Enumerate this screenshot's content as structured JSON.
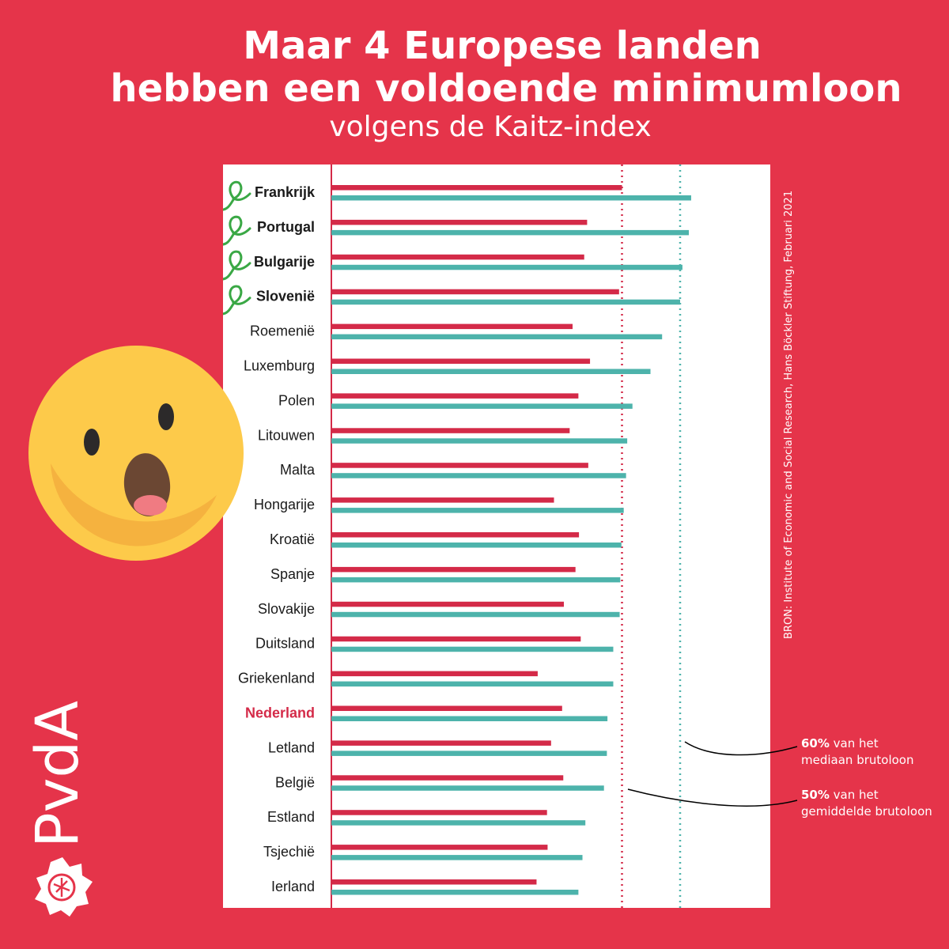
{
  "title_line1": "Maar 4 Europese landen",
  "title_line2": "hebben een voldoende minimumloon",
  "subtitle": "volgens de Kaitz-index",
  "source": "BRON: Institute of Economic and Social Research, Hans Böckler Stiftung, Februari 2021",
  "annotation_60": {
    "strong": "60%",
    "rest": " van het",
    "line2": "mediaan brutoloon"
  },
  "annotation_50": {
    "strong": "50%",
    "rest": " van het",
    "line2": "gemiddelde brutoloon"
  },
  "logo_text": "PvdA",
  "colors": {
    "background": "#e5344a",
    "bar_average": "#d42a48",
    "bar_median": "#4db3ab",
    "highlight_label": "#d42a48",
    "check_mark": "#3aa845"
  },
  "icons": [
    "surprised-face-emoji-icon",
    "rose-logo-icon",
    "check-mark-icon"
  ],
  "chart_data": {
    "type": "bar",
    "orientation": "horizontal",
    "categories": [
      "Frankrijk",
      "Portugal",
      "Bulgarije",
      "Slovenië",
      "Roemenië",
      "Luxemburg",
      "Polen",
      "Litouwen",
      "Malta",
      "Hongarije",
      "Kroatië",
      "Spanje",
      "Slovakije",
      "Duitsland",
      "Griekenland",
      "Nederland",
      "Letland",
      "België",
      "Estland",
      "Tsjechië",
      "Ierland"
    ],
    "highlighted": [
      "Frankrijk",
      "Portugal",
      "Bulgarije",
      "Slovenië"
    ],
    "checked": [
      "Frankrijk",
      "Portugal",
      "Bulgarije",
      "Slovenië"
    ],
    "emphasized_country": "Nederland",
    "series": [
      {
        "key": "average",
        "values": [
          50,
          44,
          43.5,
          49.5,
          41.5,
          44.5,
          42.5,
          41,
          44.2,
          38.3,
          42.6,
          42,
          40,
          42.9,
          35.5,
          39.7,
          37.8,
          39.9,
          37.1,
          37.2,
          35.3
        ]
      },
      {
        "key": "median",
        "values": [
          61.9,
          61.5,
          60.4,
          60,
          56.9,
          54.9,
          51.8,
          50.9,
          50.7,
          50.3,
          49.9,
          49.7,
          49.6,
          48.5,
          48.5,
          47.5,
          47.4,
          46.9,
          43.7,
          43.2,
          42.5
        ]
      }
    ],
    "reference_lines": [
      {
        "value": 50,
        "series": "average"
      },
      {
        "value": 60,
        "series": "median"
      }
    ],
    "xlim": [
      0,
      75
    ]
  }
}
